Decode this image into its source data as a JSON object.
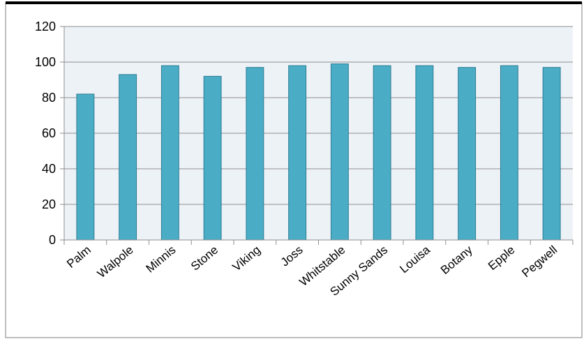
{
  "chart_data": {
    "type": "bar",
    "categories": [
      "Palm",
      "Walpole",
      "Minnis",
      "Stone",
      "Viking",
      "Joss",
      "Whitstable",
      "Sunny Sands",
      "Louisa",
      "Botany",
      "Epple",
      "Pegwell"
    ],
    "values": [
      82,
      93,
      98,
      92,
      97,
      98,
      99,
      98,
      98,
      97,
      98,
      97
    ],
    "ylim": [
      0,
      120
    ],
    "yticks": [
      "0",
      "20",
      "40",
      "60",
      "80",
      "100",
      "120"
    ],
    "grid": true,
    "legend": "none",
    "title": "",
    "xlabel": "",
    "ylabel": ""
  },
  "colors": {
    "bar_fill": "#4BACC6",
    "bar_stroke": "#2C7C93",
    "plot_background": "#EDF2F7",
    "gridline": "#8E8E8E",
    "axis": "#8E8E8E",
    "top_rule": "#000000"
  }
}
